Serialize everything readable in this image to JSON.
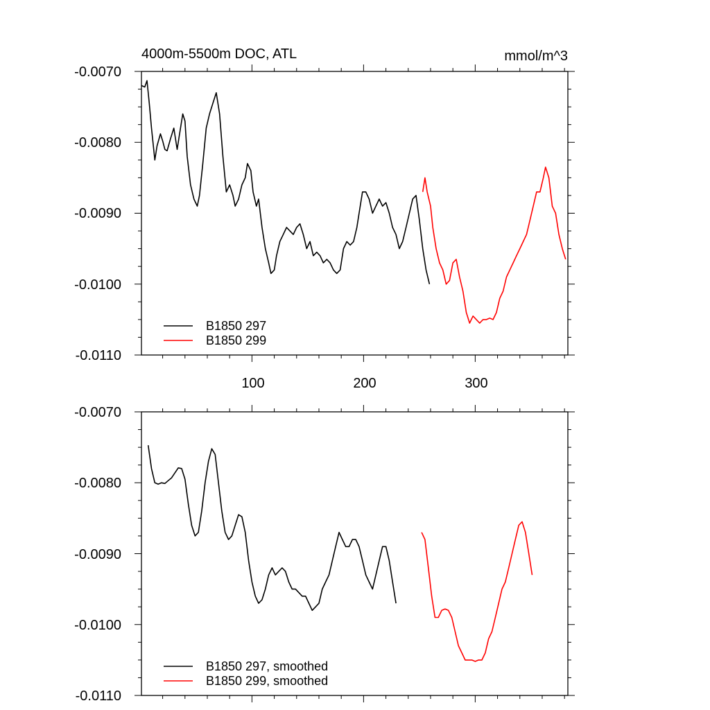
{
  "chart_data": [
    {
      "type": "line",
      "title": "4000m-5500m DOC, ATL",
      "units": "mmol/m^3",
      "xlim": [
        1,
        383
      ],
      "ylim": [
        -0.011,
        -0.007
      ],
      "yticks": [
        "-0.0070",
        "-0.0080",
        "-0.0090",
        "-0.0100",
        "-0.0110"
      ],
      "xticks": [
        "100",
        "200",
        "300"
      ],
      "grid": false,
      "legend_position": "bottom-left",
      "legend": [
        "B1850 297",
        "B1850 299"
      ],
      "series": [
        {
          "name": "B1850 297",
          "color": "#000000",
          "points": [
            [
              1,
              -0.0072
            ],
            [
              4,
              -0.00722
            ],
            [
              6,
              -0.00713
            ],
            [
              8,
              -0.00745
            ],
            [
              10,
              -0.0078
            ],
            [
              13,
              -0.00825
            ],
            [
              15,
              -0.00805
            ],
            [
              18,
              -0.00788
            ],
            [
              20,
              -0.00798
            ],
            [
              22,
              -0.0081
            ],
            [
              24,
              -0.00812
            ],
            [
              27,
              -0.00795
            ],
            [
              30,
              -0.0078
            ],
            [
              33,
              -0.0081
            ],
            [
              35,
              -0.0079
            ],
            [
              38,
              -0.0076
            ],
            [
              40,
              -0.0077
            ],
            [
              42,
              -0.0082
            ],
            [
              45,
              -0.0086
            ],
            [
              48,
              -0.0088
            ],
            [
              51,
              -0.0089
            ],
            [
              53,
              -0.00875
            ],
            [
              56,
              -0.0083
            ],
            [
              59,
              -0.0078
            ],
            [
              62,
              -0.0076
            ],
            [
              65,
              -0.00745
            ],
            [
              68,
              -0.0073
            ],
            [
              71,
              -0.0076
            ],
            [
              74,
              -0.0082
            ],
            [
              77,
              -0.0087
            ],
            [
              80,
              -0.0086
            ],
            [
              83,
              -0.00875
            ],
            [
              85,
              -0.0089
            ],
            [
              88,
              -0.0088
            ],
            [
              91,
              -0.0086
            ],
            [
              94,
              -0.0085
            ],
            [
              96,
              -0.0083
            ],
            [
              99,
              -0.0084
            ],
            [
              101,
              -0.0087
            ],
            [
              104,
              -0.0089
            ],
            [
              106,
              -0.0088
            ],
            [
              109,
              -0.0092
            ],
            [
              112,
              -0.0095
            ],
            [
              115,
              -0.0097
            ],
            [
              117,
              -0.00985
            ],
            [
              120,
              -0.0098
            ],
            [
              122,
              -0.0096
            ],
            [
              125,
              -0.0094
            ],
            [
              128,
              -0.0093
            ],
            [
              131,
              -0.0092
            ],
            [
              134,
              -0.00925
            ],
            [
              137,
              -0.0093
            ],
            [
              140,
              -0.0092
            ],
            [
              143,
              -0.00915
            ],
            [
              146,
              -0.0093
            ],
            [
              149,
              -0.0095
            ],
            [
              152,
              -0.0094
            ],
            [
              155,
              -0.0096
            ],
            [
              158,
              -0.00955
            ],
            [
              161,
              -0.0096
            ],
            [
              164,
              -0.0097
            ],
            [
              167,
              -0.00965
            ],
            [
              170,
              -0.0097
            ],
            [
              173,
              -0.0098
            ],
            [
              176,
              -0.00985
            ],
            [
              179,
              -0.0098
            ],
            [
              182,
              -0.0095
            ],
            [
              185,
              -0.0094
            ],
            [
              188,
              -0.00945
            ],
            [
              191,
              -0.0094
            ],
            [
              194,
              -0.0092
            ],
            [
              196,
              -0.009
            ],
            [
              199,
              -0.0087
            ],
            [
              202,
              -0.0087
            ],
            [
              205,
              -0.0088
            ],
            [
              208,
              -0.009
            ],
            [
              211,
              -0.0089
            ],
            [
              214,
              -0.0088
            ],
            [
              217,
              -0.0089
            ],
            [
              220,
              -0.00885
            ],
            [
              223,
              -0.009
            ],
            [
              226,
              -0.0092
            ],
            [
              229,
              -0.0093
            ],
            [
              232,
              -0.0095
            ],
            [
              235,
              -0.0094
            ],
            [
              238,
              -0.0092
            ],
            [
              241,
              -0.009
            ],
            [
              244,
              -0.0088
            ],
            [
              247,
              -0.00875
            ],
            [
              250,
              -0.0091
            ],
            [
              253,
              -0.0095
            ],
            [
              256,
              -0.0098
            ],
            [
              259,
              -0.01
            ]
          ]
        },
        {
          "name": "B1850 299",
          "color": "#ff0000",
          "points": [
            [
              253,
              -0.0087
            ],
            [
              255,
              -0.0085
            ],
            [
              257,
              -0.0087
            ],
            [
              260,
              -0.0089
            ],
            [
              262,
              -0.0092
            ],
            [
              265,
              -0.0095
            ],
            [
              268,
              -0.0097
            ],
            [
              271,
              -0.0098
            ],
            [
              274,
              -0.01
            ],
            [
              277,
              -0.00995
            ],
            [
              280,
              -0.0097
            ],
            [
              283,
              -0.00965
            ],
            [
              286,
              -0.0099
            ],
            [
              289,
              -0.0101
            ],
            [
              292,
              -0.0104
            ],
            [
              295,
              -0.01055
            ],
            [
              298,
              -0.01045
            ],
            [
              301,
              -0.0105
            ],
            [
              304,
              -0.01055
            ],
            [
              307,
              -0.0105
            ],
            [
              310,
              -0.0105
            ],
            [
              313,
              -0.01048
            ],
            [
              316,
              -0.0105
            ],
            [
              319,
              -0.0104
            ],
            [
              322,
              -0.0102
            ],
            [
              325,
              -0.0101
            ],
            [
              328,
              -0.0099
            ],
            [
              331,
              -0.0098
            ],
            [
              334,
              -0.0097
            ],
            [
              337,
              -0.0096
            ],
            [
              340,
              -0.0095
            ],
            [
              343,
              -0.0094
            ],
            [
              346,
              -0.0093
            ],
            [
              349,
              -0.0091
            ],
            [
              352,
              -0.0089
            ],
            [
              355,
              -0.0087
            ],
            [
              358,
              -0.0087
            ],
            [
              361,
              -0.0085
            ],
            [
              363,
              -0.00835
            ],
            [
              366,
              -0.0085
            ],
            [
              369,
              -0.0089
            ],
            [
              372,
              -0.009
            ],
            [
              375,
              -0.0093
            ],
            [
              378,
              -0.0095
            ],
            [
              381,
              -0.00965
            ]
          ]
        }
      ]
    },
    {
      "type": "line",
      "xlim": [
        1,
        383
      ],
      "ylim": [
        -0.011,
        -0.007
      ],
      "yticks": [
        "-0.0070",
        "-0.0080",
        "-0.0090",
        "-0.0100",
        "-0.0110"
      ],
      "grid": false,
      "legend_position": "bottom-left",
      "legend": [
        "B1850 297, smoothed",
        "B1850 299, smoothed"
      ],
      "series": [
        {
          "name": "B1850 297, smoothed",
          "color": "#000000",
          "points": [
            [
              7,
              -0.00747
            ],
            [
              10,
              -0.0078
            ],
            [
              13,
              -0.008
            ],
            [
              16,
              -0.00802
            ],
            [
              19,
              -0.008
            ],
            [
              22,
              -0.00801
            ],
            [
              25,
              -0.00797
            ],
            [
              28,
              -0.00793
            ],
            [
              31,
              -0.00786
            ],
            [
              34,
              -0.00779
            ],
            [
              37,
              -0.0078
            ],
            [
              40,
              -0.00795
            ],
            [
              43,
              -0.0083
            ],
            [
              46,
              -0.0086
            ],
            [
              49,
              -0.00875
            ],
            [
              52,
              -0.0087
            ],
            [
              55,
              -0.0084
            ],
            [
              58,
              -0.008
            ],
            [
              61,
              -0.0077
            ],
            [
              64,
              -0.00752
            ],
            [
              67,
              -0.0076
            ],
            [
              70,
              -0.008
            ],
            [
              73,
              -0.0084
            ],
            [
              76,
              -0.0087
            ],
            [
              79,
              -0.0088
            ],
            [
              82,
              -0.00875
            ],
            [
              85,
              -0.0086
            ],
            [
              88,
              -0.00845
            ],
            [
              91,
              -0.00848
            ],
            [
              94,
              -0.0087
            ],
            [
              97,
              -0.0091
            ],
            [
              100,
              -0.0094
            ],
            [
              103,
              -0.0096
            ],
            [
              106,
              -0.0097
            ],
            [
              109,
              -0.00965
            ],
            [
              112,
              -0.0095
            ],
            [
              115,
              -0.0093
            ],
            [
              118,
              -0.0092
            ],
            [
              121,
              -0.0093
            ],
            [
              124,
              -0.00925
            ],
            [
              127,
              -0.0092
            ],
            [
              130,
              -0.00925
            ],
            [
              133,
              -0.0094
            ],
            [
              136,
              -0.0095
            ],
            [
              139,
              -0.0095
            ],
            [
              142,
              -0.00955
            ],
            [
              145,
              -0.0096
            ],
            [
              148,
              -0.0096
            ],
            [
              151,
              -0.0097
            ],
            [
              154,
              -0.0098
            ],
            [
              157,
              -0.00975
            ],
            [
              160,
              -0.0097
            ],
            [
              163,
              -0.0095
            ],
            [
              166,
              -0.0094
            ],
            [
              169,
              -0.0093
            ],
            [
              172,
              -0.0091
            ],
            [
              175,
              -0.0089
            ],
            [
              178,
              -0.0087
            ],
            [
              181,
              -0.0088
            ],
            [
              184,
              -0.0089
            ],
            [
              187,
              -0.0089
            ],
            [
              190,
              -0.0088
            ],
            [
              193,
              -0.0088
            ],
            [
              196,
              -0.0089
            ],
            [
              199,
              -0.0091
            ],
            [
              202,
              -0.0093
            ],
            [
              205,
              -0.0094
            ],
            [
              208,
              -0.0095
            ],
            [
              211,
              -0.0093
            ],
            [
              214,
              -0.0091
            ],
            [
              217,
              -0.0089
            ],
            [
              220,
              -0.0089
            ],
            [
              223,
              -0.0091
            ],
            [
              226,
              -0.0094
            ],
            [
              229,
              -0.0097
            ]
          ]
        },
        {
          "name": "B1850 299, smoothed",
          "color": "#ff0000",
          "points": [
            [
              252,
              -0.0087
            ],
            [
              255,
              -0.0088
            ],
            [
              258,
              -0.0092
            ],
            [
              261,
              -0.0096
            ],
            [
              264,
              -0.0099
            ],
            [
              267,
              -0.0099
            ],
            [
              270,
              -0.0098
            ],
            [
              273,
              -0.00978
            ],
            [
              276,
              -0.0098
            ],
            [
              279,
              -0.0099
            ],
            [
              282,
              -0.0101
            ],
            [
              285,
              -0.0103
            ],
            [
              288,
              -0.0104
            ],
            [
              291,
              -0.0105
            ],
            [
              294,
              -0.0105
            ],
            [
              297,
              -0.0105
            ],
            [
              300,
              -0.01052
            ],
            [
              303,
              -0.0105
            ],
            [
              306,
              -0.0105
            ],
            [
              309,
              -0.0104
            ],
            [
              312,
              -0.0102
            ],
            [
              315,
              -0.0101
            ],
            [
              318,
              -0.0099
            ],
            [
              321,
              -0.0097
            ],
            [
              324,
              -0.0095
            ],
            [
              327,
              -0.0094
            ],
            [
              330,
              -0.0092
            ],
            [
              333,
              -0.009
            ],
            [
              336,
              -0.0088
            ],
            [
              339,
              -0.0086
            ],
            [
              342,
              -0.00855
            ],
            [
              345,
              -0.0087
            ],
            [
              348,
              -0.009
            ],
            [
              351,
              -0.0093
            ]
          ]
        }
      ]
    }
  ]
}
